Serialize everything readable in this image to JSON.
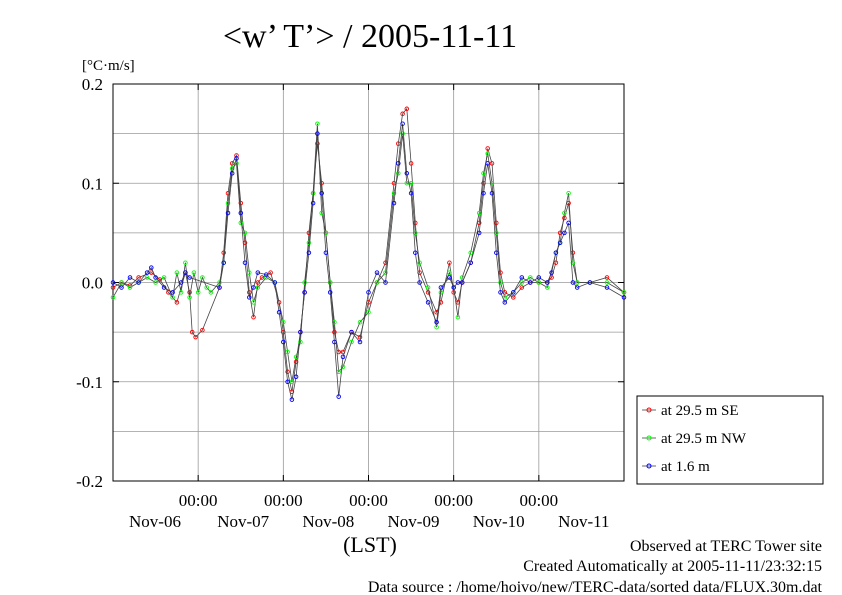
{
  "chart_data": {
    "type": "line",
    "title": "<w’ T’> / 2005-11-11",
    "ylabel_unit": "[°C·m/s]",
    "xlabel": "(LST)",
    "ylim": [
      -0.2,
      0.2
    ],
    "yticks": [
      {
        "value": 0.2,
        "label": "0.2"
      },
      {
        "value": 0.1,
        "label": "0.1"
      },
      {
        "value": 0.0,
        "label": "0.0"
      },
      {
        "value": -0.1,
        "label": "-0.1"
      },
      {
        "value": -0.2,
        "label": "-0.2"
      }
    ],
    "xlim": [
      0,
      6
    ],
    "xticks": [
      {
        "value": 1,
        "time": "00:00",
        "date": "Nov-07"
      },
      {
        "value": 2,
        "time": "00:00",
        "date": "Nov-08"
      },
      {
        "value": 3,
        "time": "00:00",
        "date": "Nov-09"
      },
      {
        "value": 4,
        "time": "00:00",
        "date": "Nov-10"
      },
      {
        "value": 5,
        "time": "00:00",
        "date": "Nov-11"
      }
    ],
    "first_date_label": "Nov-06",
    "grid": true,
    "legend_position": "outside-right-bottom",
    "series": [
      {
        "name": "at 29.5 m SE",
        "color": "#ff0000",
        "points": [
          [
            0.0,
            -0.005
          ],
          [
            0.1,
            0.0
          ],
          [
            0.2,
            -0.003
          ],
          [
            0.3,
            0.005
          ],
          [
            0.45,
            0.01
          ],
          [
            0.55,
            0.003
          ],
          [
            0.65,
            -0.01
          ],
          [
            0.75,
            -0.02
          ],
          [
            0.85,
            0.01
          ],
          [
            0.9,
            -0.01
          ],
          [
            0.93,
            -0.05
          ],
          [
            0.97,
            -0.055
          ],
          [
            1.05,
            -0.048
          ],
          [
            1.25,
            -0.005
          ],
          [
            1.3,
            0.03
          ],
          [
            1.35,
            0.09
          ],
          [
            1.4,
            0.12
          ],
          [
            1.45,
            0.128
          ],
          [
            1.5,
            0.08
          ],
          [
            1.55,
            0.04
          ],
          [
            1.6,
            -0.01
          ],
          [
            1.65,
            -0.035
          ],
          [
            1.7,
            0.0
          ],
          [
            1.75,
            0.005
          ],
          [
            1.85,
            0.01
          ],
          [
            1.95,
            -0.02
          ],
          [
            2.0,
            -0.05
          ],
          [
            2.05,
            -0.09
          ],
          [
            2.1,
            -0.11
          ],
          [
            2.15,
            -0.08
          ],
          [
            2.2,
            -0.05
          ],
          [
            2.25,
            -0.01
          ],
          [
            2.3,
            0.05
          ],
          [
            2.35,
            0.09
          ],
          [
            2.4,
            0.14
          ],
          [
            2.45,
            0.1
          ],
          [
            2.5,
            0.05
          ],
          [
            2.55,
            0.0
          ],
          [
            2.6,
            -0.05
          ],
          [
            2.65,
            -0.07
          ],
          [
            2.7,
            -0.07
          ],
          [
            2.8,
            -0.05
          ],
          [
            2.9,
            -0.055
          ],
          [
            3.0,
            -0.02
          ],
          [
            3.1,
            0.0
          ],
          [
            3.2,
            0.02
          ],
          [
            3.3,
            0.1
          ],
          [
            3.35,
            0.14
          ],
          [
            3.4,
            0.17
          ],
          [
            3.45,
            0.175
          ],
          [
            3.5,
            0.12
          ],
          [
            3.55,
            0.06
          ],
          [
            3.6,
            0.01
          ],
          [
            3.7,
            -0.01
          ],
          [
            3.8,
            -0.03
          ],
          [
            3.85,
            -0.02
          ],
          [
            3.95,
            0.02
          ],
          [
            4.0,
            -0.01
          ],
          [
            4.05,
            -0.02
          ],
          [
            4.1,
            0.0
          ],
          [
            4.2,
            0.02
          ],
          [
            4.3,
            0.06
          ],
          [
            4.35,
            0.1
          ],
          [
            4.4,
            0.135
          ],
          [
            4.45,
            0.12
          ],
          [
            4.5,
            0.06
          ],
          [
            4.55,
            0.01
          ],
          [
            4.6,
            -0.01
          ],
          [
            4.7,
            -0.015
          ],
          [
            4.8,
            -0.005
          ],
          [
            4.9,
            0.0
          ],
          [
            5.0,
            0.0
          ],
          [
            5.1,
            0.0
          ],
          [
            5.15,
            0.005
          ],
          [
            5.2,
            0.02
          ],
          [
            5.25,
            0.05
          ],
          [
            5.3,
            0.065
          ],
          [
            5.35,
            0.08
          ],
          [
            5.4,
            0.03
          ],
          [
            5.45,
            0.0
          ],
          [
            5.6,
            0.0
          ],
          [
            5.8,
            0.005
          ],
          [
            6.0,
            -0.01
          ]
        ]
      },
      {
        "name": "at 29.5 m NW",
        "color": "#00ff00",
        "points": [
          [
            0.0,
            -0.015
          ],
          [
            0.1,
            0.0
          ],
          [
            0.2,
            -0.005
          ],
          [
            0.3,
            0.0
          ],
          [
            0.4,
            0.005
          ],
          [
            0.5,
            0.0
          ],
          [
            0.6,
            0.005
          ],
          [
            0.7,
            -0.015
          ],
          [
            0.75,
            0.01
          ],
          [
            0.8,
            -0.01
          ],
          [
            0.85,
            0.02
          ],
          [
            0.9,
            -0.015
          ],
          [
            0.95,
            0.01
          ],
          [
            1.0,
            -0.01
          ],
          [
            1.05,
            0.005
          ],
          [
            1.1,
            -0.005
          ],
          [
            1.15,
            -0.01
          ],
          [
            1.25,
            0.0
          ],
          [
            1.3,
            0.02
          ],
          [
            1.35,
            0.08
          ],
          [
            1.4,
            0.115
          ],
          [
            1.45,
            0.12
          ],
          [
            1.5,
            0.06
          ],
          [
            1.55,
            0.05
          ],
          [
            1.6,
            0.01
          ],
          [
            1.65,
            -0.02
          ],
          [
            1.7,
            -0.005
          ],
          [
            1.8,
            0.005
          ],
          [
            1.9,
            0.0
          ],
          [
            2.0,
            -0.04
          ],
          [
            2.05,
            -0.07
          ],
          [
            2.1,
            -0.1
          ],
          [
            2.15,
            -0.075
          ],
          [
            2.2,
            -0.06
          ],
          [
            2.25,
            0.0
          ],
          [
            2.3,
            0.04
          ],
          [
            2.35,
            0.09
          ],
          [
            2.4,
            0.16
          ],
          [
            2.45,
            0.07
          ],
          [
            2.5,
            0.05
          ],
          [
            2.55,
            0.0
          ],
          [
            2.6,
            -0.04
          ],
          [
            2.65,
            -0.09
          ],
          [
            2.7,
            -0.085
          ],
          [
            2.8,
            -0.06
          ],
          [
            2.9,
            -0.04
          ],
          [
            3.0,
            -0.03
          ],
          [
            3.1,
            0.0
          ],
          [
            3.2,
            0.01
          ],
          [
            3.3,
            0.09
          ],
          [
            3.35,
            0.11
          ],
          [
            3.4,
            0.15
          ],
          [
            3.45,
            0.1
          ],
          [
            3.5,
            0.1
          ],
          [
            3.55,
            0.05
          ],
          [
            3.6,
            0.02
          ],
          [
            3.7,
            -0.005
          ],
          [
            3.8,
            -0.045
          ],
          [
            3.85,
            -0.01
          ],
          [
            3.95,
            0.01
          ],
          [
            4.0,
            -0.005
          ],
          [
            4.05,
            -0.035
          ],
          [
            4.1,
            0.005
          ],
          [
            4.2,
            0.03
          ],
          [
            4.3,
            0.07
          ],
          [
            4.35,
            0.11
          ],
          [
            4.4,
            0.13
          ],
          [
            4.45,
            0.1
          ],
          [
            4.5,
            0.05
          ],
          [
            4.55,
            0.0
          ],
          [
            4.6,
            -0.015
          ],
          [
            4.7,
            -0.01
          ],
          [
            4.8,
            0.0
          ],
          [
            4.9,
            0.005
          ],
          [
            5.0,
            0.0
          ],
          [
            5.1,
            -0.005
          ],
          [
            5.2,
            0.03
          ],
          [
            5.25,
            0.04
          ],
          [
            5.3,
            0.07
          ],
          [
            5.35,
            0.09
          ],
          [
            5.4,
            0.02
          ],
          [
            5.45,
            0.0
          ],
          [
            5.6,
            0.0
          ],
          [
            5.8,
            0.0
          ],
          [
            6.0,
            -0.01
          ]
        ]
      },
      {
        "name": "at 1.6 m",
        "color": "#0000ff",
        "points": [
          [
            0.0,
            0.0
          ],
          [
            0.1,
            -0.005
          ],
          [
            0.2,
            0.005
          ],
          [
            0.3,
            0.0
          ],
          [
            0.4,
            0.01
          ],
          [
            0.45,
            0.015
          ],
          [
            0.5,
            0.005
          ],
          [
            0.6,
            -0.005
          ],
          [
            0.7,
            -0.01
          ],
          [
            0.8,
            0.0
          ],
          [
            0.85,
            0.01
          ],
          [
            0.9,
            0.005
          ],
          [
            1.25,
            -0.005
          ],
          [
            1.3,
            0.02
          ],
          [
            1.35,
            0.07
          ],
          [
            1.4,
            0.11
          ],
          [
            1.45,
            0.125
          ],
          [
            1.5,
            0.07
          ],
          [
            1.55,
            0.02
          ],
          [
            1.6,
            -0.015
          ],
          [
            1.65,
            -0.005
          ],
          [
            1.7,
            0.01
          ],
          [
            1.8,
            0.008
          ],
          [
            1.9,
            0.0
          ],
          [
            1.95,
            -0.03
          ],
          [
            2.0,
            -0.06
          ],
          [
            2.05,
            -0.1
          ],
          [
            2.1,
            -0.118
          ],
          [
            2.15,
            -0.095
          ],
          [
            2.2,
            -0.05
          ],
          [
            2.25,
            -0.01
          ],
          [
            2.3,
            0.03
          ],
          [
            2.35,
            0.08
          ],
          [
            2.4,
            0.15
          ],
          [
            2.45,
            0.09
          ],
          [
            2.5,
            0.03
          ],
          [
            2.55,
            -0.01
          ],
          [
            2.6,
            -0.06
          ],
          [
            2.65,
            -0.115
          ],
          [
            2.7,
            -0.075
          ],
          [
            2.8,
            -0.05
          ],
          [
            2.9,
            -0.06
          ],
          [
            3.0,
            -0.01
          ],
          [
            3.1,
            0.01
          ],
          [
            3.2,
            0.0
          ],
          [
            3.3,
            0.08
          ],
          [
            3.35,
            0.12
          ],
          [
            3.4,
            0.16
          ],
          [
            3.45,
            0.11
          ],
          [
            3.5,
            0.09
          ],
          [
            3.55,
            0.03
          ],
          [
            3.6,
            0.0
          ],
          [
            3.7,
            -0.02
          ],
          [
            3.8,
            -0.04
          ],
          [
            3.85,
            -0.005
          ],
          [
            3.95,
            0.005
          ],
          [
            4.0,
            -0.005
          ],
          [
            4.05,
            0.0
          ],
          [
            4.1,
            0.0
          ],
          [
            4.2,
            0.02
          ],
          [
            4.3,
            0.05
          ],
          [
            4.35,
            0.09
          ],
          [
            4.4,
            0.12
          ],
          [
            4.45,
            0.09
          ],
          [
            4.5,
            0.03
          ],
          [
            4.55,
            -0.01
          ],
          [
            4.6,
            -0.02
          ],
          [
            4.7,
            -0.01
          ],
          [
            4.8,
            0.005
          ],
          [
            4.9,
            0.0
          ],
          [
            5.0,
            0.005
          ],
          [
            5.1,
            0.0
          ],
          [
            5.15,
            0.01
          ],
          [
            5.2,
            0.03
          ],
          [
            5.25,
            0.04
          ],
          [
            5.3,
            0.05
          ],
          [
            5.35,
            0.06
          ],
          [
            5.4,
            0.0
          ],
          [
            5.45,
            -0.005
          ],
          [
            5.6,
            0.0
          ],
          [
            5.8,
            -0.005
          ],
          [
            6.0,
            -0.015
          ]
        ]
      }
    ]
  },
  "footer": {
    "line1": "Observed at TERC Tower site",
    "line2": "Created Automatically at 2005-11-11/23:32:15",
    "line3": "Data source : /home/hoivo/new/TERC-data/sorted  data/FLUX.30m.dat"
  }
}
